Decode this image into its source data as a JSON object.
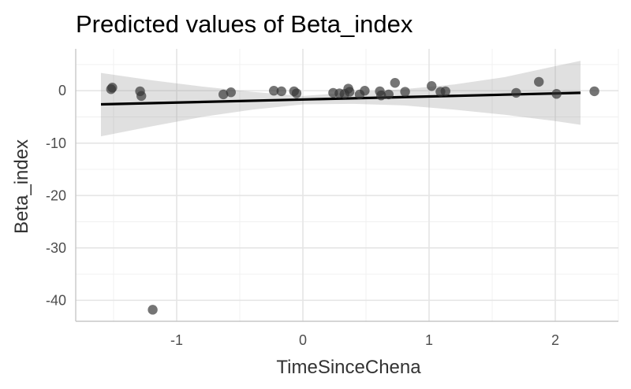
{
  "chart_data": {
    "type": "scatter",
    "title": "Predicted values of Beta_index",
    "xlabel": "TimeSinceChena",
    "ylabel": "Beta_index",
    "xlim": [
      -1.8,
      2.5
    ],
    "ylim": [
      -44,
      8
    ],
    "x_ticks": [
      -1,
      0,
      1,
      2
    ],
    "x_tick_labels": [
      "-1",
      "0",
      "1",
      "2"
    ],
    "y_ticks": [
      -40,
      -30,
      -20,
      -10,
      0
    ],
    "y_tick_labels": [
      "-40",
      "-30",
      "-20",
      "-10",
      "0"
    ],
    "grid": true,
    "legend": "none",
    "points": [
      {
        "x": -1.51,
        "y": 0.6
      },
      {
        "x": -1.52,
        "y": 0.3
      },
      {
        "x": -1.29,
        "y": -0.1
      },
      {
        "x": -1.28,
        "y": -1.0
      },
      {
        "x": -1.19,
        "y": -41.8
      },
      {
        "x": -0.63,
        "y": -0.7
      },
      {
        "x": -0.57,
        "y": -0.3
      },
      {
        "x": -0.23,
        "y": 0.0
      },
      {
        "x": -0.17,
        "y": -0.1
      },
      {
        "x": -0.07,
        "y": -0.1
      },
      {
        "x": -0.05,
        "y": -0.5
      },
      {
        "x": 0.24,
        "y": -0.4
      },
      {
        "x": 0.29,
        "y": -0.5
      },
      {
        "x": 0.33,
        "y": -0.6
      },
      {
        "x": 0.36,
        "y": 0.4
      },
      {
        "x": 0.37,
        "y": -0.2
      },
      {
        "x": 0.45,
        "y": -0.7
      },
      {
        "x": 0.49,
        "y": 0.0
      },
      {
        "x": 0.61,
        "y": -0.1
      },
      {
        "x": 0.62,
        "y": -0.9
      },
      {
        "x": 0.68,
        "y": -0.7
      },
      {
        "x": 0.73,
        "y": 1.5
      },
      {
        "x": 0.81,
        "y": -0.2
      },
      {
        "x": 1.02,
        "y": 0.9
      },
      {
        "x": 1.09,
        "y": -0.2
      },
      {
        "x": 1.13,
        "y": -0.1
      },
      {
        "x": 1.69,
        "y": -0.4
      },
      {
        "x": 1.87,
        "y": 1.7
      },
      {
        "x": 2.01,
        "y": -0.6
      },
      {
        "x": 2.31,
        "y": -0.1
      }
    ],
    "fit_line": {
      "x": [
        -1.6,
        2.2
      ],
      "y": [
        -2.6,
        -0.4
      ]
    },
    "confidence_band": {
      "x": [
        -1.6,
        -1.2,
        -0.8,
        -0.4,
        0.0,
        0.4,
        0.8,
        1.2,
        1.6,
        2.0,
        2.2
      ],
      "lower": [
        -8.7,
        -6.8,
        -5.0,
        -3.6,
        -2.6,
        -2.5,
        -2.8,
        -3.6,
        -4.6,
        -5.8,
        -6.5
      ],
      "upper": [
        3.4,
        2.0,
        0.8,
        -0.2,
        -1.0,
        -0.3,
        0.3,
        1.2,
        2.6,
        4.7,
        5.7
      ]
    },
    "colors": {
      "point": "#333333",
      "fit_line": "#000000",
      "ci_band": "#999999",
      "grid": "#e5e5e5",
      "axis": "#c7c7c7"
    }
  }
}
